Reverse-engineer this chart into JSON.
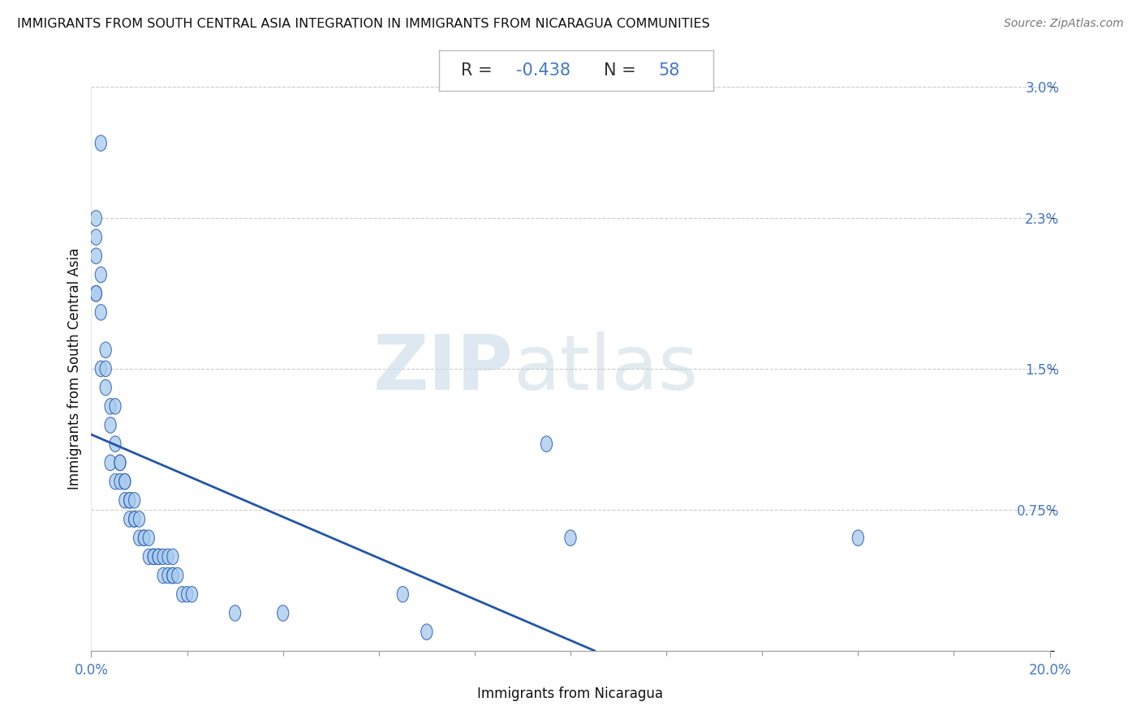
{
  "title": "IMMIGRANTS FROM SOUTH CENTRAL ASIA INTEGRATION IN IMMIGRANTS FROM NICARAGUA COMMUNITIES",
  "source": "Source: ZipAtlas.com",
  "xlabel": "Immigrants from Nicaragua",
  "ylabel": "Immigrants from South Central Asia",
  "R": -0.438,
  "N": 58,
  "x_min": 0.0,
  "x_max": 0.2,
  "y_min": 0.0,
  "y_max": 0.03,
  "x_tick_labels": [
    "0.0%",
    "20.0%"
  ],
  "y_tick_labels": [
    "",
    "0.75%",
    "1.5%",
    "2.3%",
    "3.0%"
  ],
  "scatter_color": "#aaccee",
  "line_color": "#2255aa",
  "title_color": "#111111",
  "axis_label_color": "#111111",
  "tick_color": "#4477cc",
  "background_color": "#ffffff",
  "line_x0": 0.0,
  "line_y0": 0.0115,
  "line_x1": 0.105,
  "line_y1": 0.0,
  "points_x": [
    0.002,
    0.001,
    0.001,
    0.001,
    0.002,
    0.001,
    0.001,
    0.002,
    0.003,
    0.002,
    0.003,
    0.003,
    0.004,
    0.005,
    0.004,
    0.005,
    0.004,
    0.006,
    0.006,
    0.005,
    0.006,
    0.007,
    0.007,
    0.007,
    0.008,
    0.008,
    0.008,
    0.009,
    0.009,
    0.009,
    0.01,
    0.01,
    0.011,
    0.011,
    0.012,
    0.012,
    0.013,
    0.013,
    0.014,
    0.014,
    0.015,
    0.015,
    0.016,
    0.016,
    0.017,
    0.017,
    0.017,
    0.018,
    0.019,
    0.02,
    0.021,
    0.03,
    0.04,
    0.065,
    0.07,
    0.095,
    0.1,
    0.16
  ],
  "points_y": [
    0.027,
    0.023,
    0.022,
    0.021,
    0.02,
    0.019,
    0.019,
    0.018,
    0.016,
    0.015,
    0.015,
    0.014,
    0.013,
    0.013,
    0.012,
    0.011,
    0.01,
    0.01,
    0.01,
    0.009,
    0.009,
    0.009,
    0.009,
    0.008,
    0.008,
    0.008,
    0.007,
    0.008,
    0.007,
    0.007,
    0.007,
    0.006,
    0.006,
    0.006,
    0.006,
    0.005,
    0.005,
    0.005,
    0.005,
    0.005,
    0.005,
    0.004,
    0.005,
    0.004,
    0.005,
    0.004,
    0.004,
    0.004,
    0.003,
    0.003,
    0.003,
    0.002,
    0.002,
    0.003,
    0.001,
    0.011,
    0.006,
    0.006
  ]
}
